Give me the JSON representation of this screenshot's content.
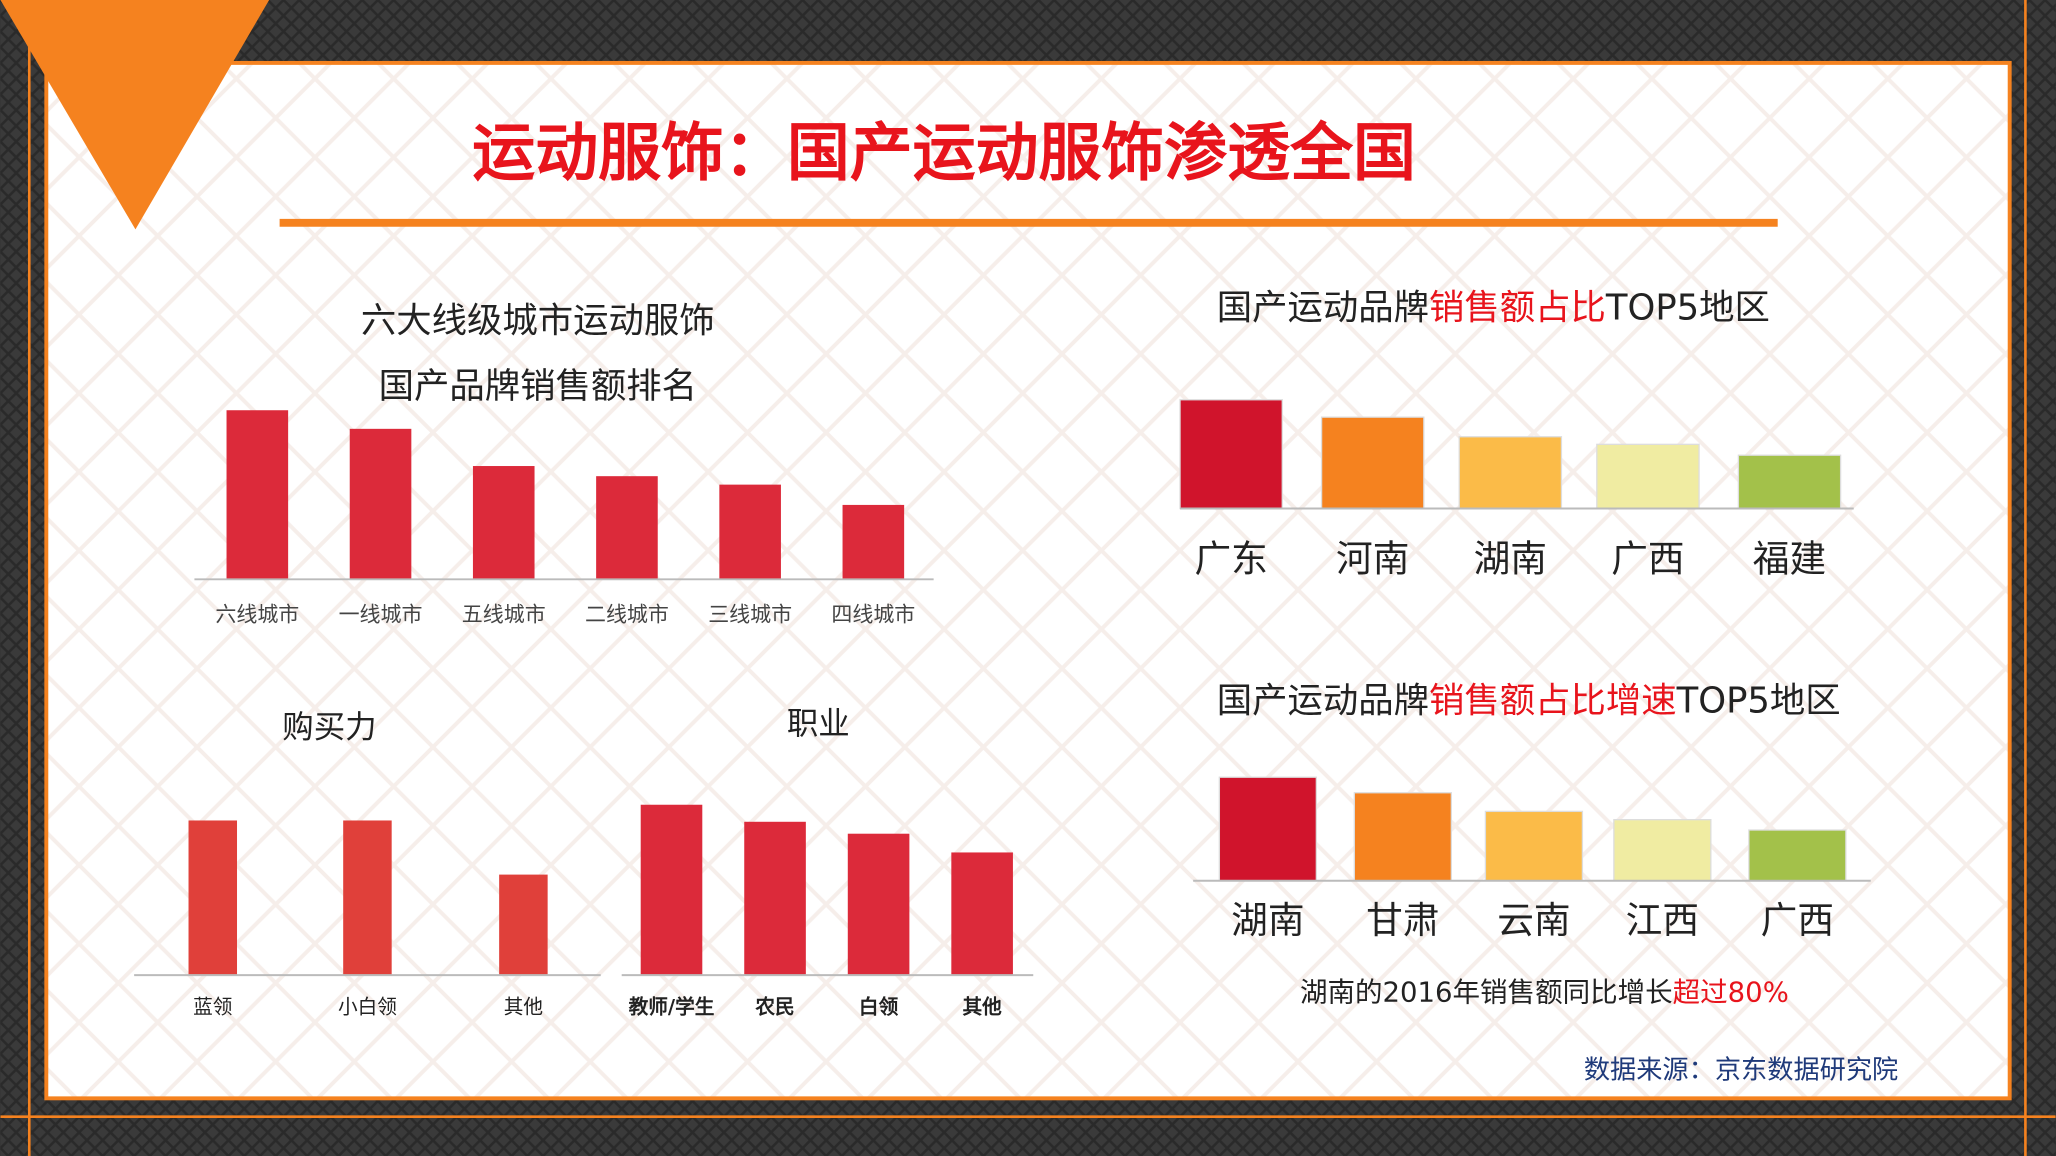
{
  "title": "运动服饰：国产运动服饰渗透全国",
  "source": "数据来源：京东数据研究院",
  "chart_data": [
    {
      "type": "bar",
      "title": [
        "六大线级城市运动服饰",
        "国产品牌销售额排名"
      ],
      "categories": [
        "六线城市",
        "一线城市",
        "五线城市",
        "二线城市",
        "三线城市",
        "四线城市"
      ],
      "values": [
        100,
        89,
        67,
        61,
        56,
        44
      ],
      "color": "#dc2a3a",
      "ylim": [
        0,
        100
      ]
    },
    {
      "type": "bar",
      "title": [
        "国产运动品牌",
        "销售额占比",
        "TOP5地区"
      ],
      "title_colors": [
        "#222222",
        "#e8141c",
        "#222222"
      ],
      "categories": [
        "广东",
        "河南",
        "湖南",
        "广西",
        "福建"
      ],
      "values": [
        100,
        84,
        66,
        59,
        49
      ],
      "colors": [
        "#d0142c",
        "#f5821f",
        "#fbbb48",
        "#f0eca2",
        "#a3c14a"
      ],
      "ylim": [
        0,
        100
      ]
    },
    {
      "type": "bar",
      "title": [
        "国产运动品牌",
        "销售额占比增速",
        "TOP5地区"
      ],
      "title_colors": [
        "#222222",
        "#e8141c",
        "#222222"
      ],
      "categories": [
        "湖南",
        "甘肃",
        "云南",
        "江西",
        "广西"
      ],
      "values": [
        100,
        85,
        67,
        59,
        49
      ],
      "colors": [
        "#d0142c",
        "#f5821f",
        "#fbbb48",
        "#f0eca2",
        "#a3c14a"
      ],
      "ylim": [
        0,
        100
      ],
      "annotation": [
        "湖南的2016年销售额同比增长",
        "超过80%"
      ],
      "annotation_colors": [
        "#222222",
        "#e8141c"
      ]
    },
    {
      "type": "bar",
      "title": [
        "购买力"
      ],
      "categories": [
        "蓝领",
        "小白领",
        "其他"
      ],
      "values": [
        100,
        100,
        65
      ],
      "color": "#e0403a",
      "ylim": [
        0,
        100
      ]
    },
    {
      "type": "bar",
      "title": [
        "职业"
      ],
      "categories": [
        "教师/学生",
        "农民",
        "白领",
        "其他"
      ],
      "values": [
        100,
        90,
        83,
        72
      ],
      "color": "#dc2a3a",
      "ylim": [
        0,
        100
      ]
    }
  ]
}
